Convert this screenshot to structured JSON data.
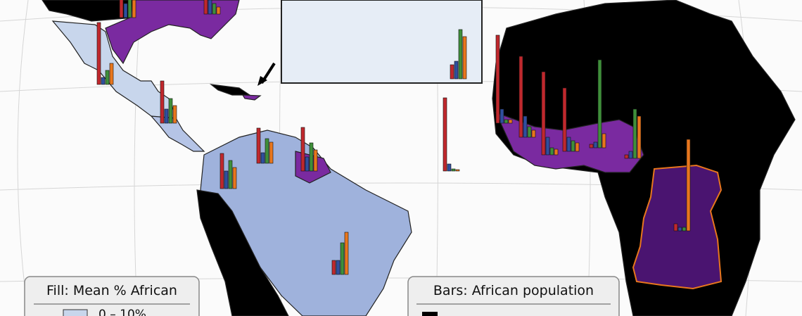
{
  "legend_fill": {
    "title": "Fill: Mean % African",
    "items": [
      "0 – 10%"
    ]
  },
  "legend_bars": {
    "title": "Bars: African population"
  }
}
